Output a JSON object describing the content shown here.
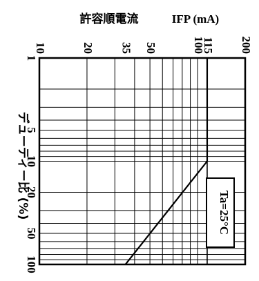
{
  "chart_data": {
    "type": "line",
    "title": "",
    "top_axis": {
      "label_prefix": "許容順電流",
      "label_unit": "IFP (mA)",
      "scale": "log",
      "range": [
        10,
        200
      ],
      "ticks": [
        10,
        20,
        35,
        50,
        100,
        115,
        200
      ],
      "tick_labels": [
        "10",
        "20",
        "35",
        "50",
        "100",
        "115",
        "200"
      ]
    },
    "left_axis": {
      "label": "デューティー比 (%)",
      "scale": "log",
      "range": [
        1,
        100
      ],
      "ticks": [
        1,
        5,
        10,
        20,
        50,
        100
      ],
      "tick_labels": [
        "1",
        "5",
        "10",
        "20",
        "50",
        "100"
      ]
    },
    "annotation": "Ta=25°C",
    "grid": true,
    "series": [
      {
        "points": [
          {
            "duty": 1,
            "current": 115
          },
          {
            "duty": 10,
            "current": 115
          },
          {
            "duty": 100,
            "current": 35
          }
        ]
      }
    ]
  }
}
